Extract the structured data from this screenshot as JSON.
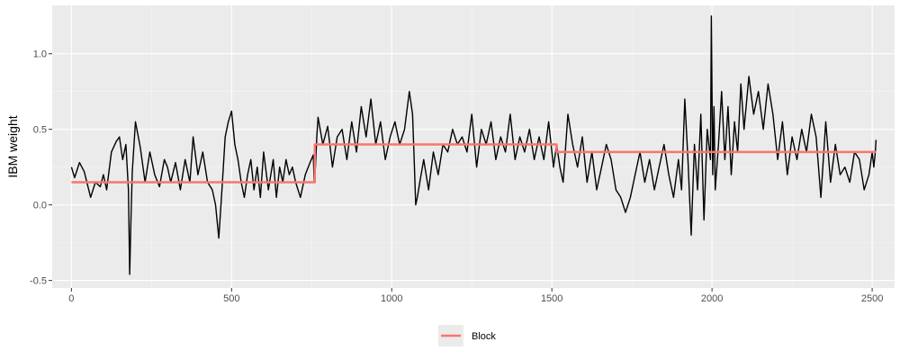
{
  "chart_data": {
    "type": "line",
    "title": "",
    "xlabel": "",
    "ylabel": "IBM weight",
    "xlim": [
      -60,
      2570
    ],
    "ylim": [
      -0.55,
      1.32
    ],
    "x_ticks": [
      0,
      500,
      1000,
      1500,
      2000,
      2500
    ],
    "y_ticks": [
      -0.5,
      0.0,
      0.5,
      1.0
    ],
    "x_tick_labels": [
      "0",
      "500",
      "1000",
      "1500",
      "2000",
      "2500"
    ],
    "y_tick_labels": [
      "-0.5",
      "0.0",
      "0.5",
      "1.0"
    ],
    "grid": true,
    "legend_position": "bottom",
    "series": [
      {
        "name": "",
        "color": "#000000",
        "x": [
          0,
          10,
          25,
          40,
          60,
          75,
          90,
          100,
          110,
          125,
          140,
          150,
          160,
          170,
          178,
          182,
          186,
          190,
          200,
          215,
          230,
          245,
          260,
          275,
          290,
          300,
          310,
          325,
          340,
          355,
          370,
          380,
          395,
          410,
          425,
          440,
          450,
          460,
          470,
          480,
          490,
          500,
          510,
          520,
          530,
          540,
          550,
          560,
          570,
          580,
          590,
          600,
          615,
          630,
          640,
          650,
          660,
          670,
          680,
          690,
          700,
          715,
          730,
          745,
          755,
          758,
          762,
          766,
          770,
          785,
          800,
          815,
          830,
          845,
          860,
          875,
          890,
          905,
          920,
          935,
          950,
          965,
          980,
          995,
          1010,
          1025,
          1040,
          1055,
          1065,
          1070,
          1075,
          1080,
          1090,
          1100,
          1115,
          1130,
          1145,
          1160,
          1175,
          1190,
          1205,
          1220,
          1235,
          1250,
          1265,
          1280,
          1295,
          1310,
          1325,
          1340,
          1355,
          1370,
          1385,
          1400,
          1415,
          1430,
          1445,
          1460,
          1475,
          1490,
          1505,
          1515,
          1525,
          1535,
          1550,
          1565,
          1580,
          1595,
          1610,
          1625,
          1640,
          1655,
          1670,
          1685,
          1700,
          1715,
          1730,
          1745,
          1760,
          1775,
          1790,
          1805,
          1820,
          1835,
          1850,
          1865,
          1880,
          1895,
          1905,
          1915,
          1925,
          1935,
          1945,
          1955,
          1965,
          1975,
          1985,
          1995,
          1998,
          2002,
          2006,
          2010,
          2020,
          2030,
          2040,
          2050,
          2060,
          2070,
          2080,
          2090,
          2100,
          2115,
          2130,
          2145,
          2160,
          2175,
          2190,
          2205,
          2220,
          2235,
          2250,
          2265,
          2280,
          2295,
          2310,
          2325,
          2340,
          2355,
          2370,
          2385,
          2400,
          2415,
          2430,
          2445,
          2460,
          2475,
          2490,
          2500,
          2505,
          2510,
          2512
        ],
        "y": [
          0.25,
          0.18,
          0.28,
          0.22,
          0.05,
          0.15,
          0.12,
          0.2,
          0.1,
          0.35,
          0.42,
          0.45,
          0.3,
          0.4,
          0.1,
          -0.46,
          -0.1,
          0.22,
          0.55,
          0.38,
          0.15,
          0.35,
          0.2,
          0.12,
          0.3,
          0.25,
          0.15,
          0.28,
          0.1,
          0.3,
          0.15,
          0.45,
          0.2,
          0.35,
          0.15,
          0.1,
          0.0,
          -0.22,
          0.1,
          0.45,
          0.55,
          0.62,
          0.4,
          0.3,
          0.15,
          0.05,
          0.2,
          0.3,
          0.1,
          0.25,
          0.05,
          0.35,
          0.1,
          0.3,
          0.05,
          0.25,
          0.15,
          0.3,
          0.2,
          0.25,
          0.15,
          0.05,
          0.2,
          0.28,
          0.33,
          0.15,
          0.25,
          0.45,
          0.58,
          0.4,
          0.52,
          0.25,
          0.45,
          0.5,
          0.3,
          0.55,
          0.35,
          0.65,
          0.45,
          0.7,
          0.4,
          0.55,
          0.3,
          0.45,
          0.55,
          0.4,
          0.5,
          0.75,
          0.6,
          0.3,
          0.0,
          0.05,
          0.18,
          0.3,
          0.1,
          0.35,
          0.2,
          0.4,
          0.35,
          0.5,
          0.4,
          0.45,
          0.35,
          0.6,
          0.25,
          0.5,
          0.4,
          0.55,
          0.3,
          0.45,
          0.35,
          0.6,
          0.3,
          0.45,
          0.35,
          0.5,
          0.3,
          0.45,
          0.3,
          0.55,
          0.25,
          0.4,
          0.25,
          0.15,
          0.6,
          0.4,
          0.25,
          0.45,
          0.15,
          0.35,
          0.1,
          0.25,
          0.4,
          0.3,
          0.1,
          0.05,
          -0.05,
          0.05,
          0.2,
          0.35,
          0.15,
          0.3,
          0.1,
          0.25,
          0.4,
          0.2,
          0.05,
          0.3,
          0.1,
          0.7,
          0.3,
          -0.2,
          0.4,
          0.1,
          0.6,
          -0.1,
          0.5,
          0.3,
          1.25,
          0.2,
          0.65,
          0.1,
          0.4,
          0.75,
          0.3,
          0.65,
          0.2,
          0.55,
          0.35,
          0.8,
          0.5,
          0.85,
          0.6,
          0.75,
          0.5,
          0.8,
          0.6,
          0.3,
          0.55,
          0.2,
          0.45,
          0.3,
          0.5,
          0.35,
          0.6,
          0.45,
          0.05,
          0.55,
          0.15,
          0.4,
          0.2,
          0.25,
          0.15,
          0.35,
          0.3,
          0.1,
          0.2,
          0.35,
          0.25,
          0.35,
          0.43
        ]
      },
      {
        "name": "Block",
        "color": "#f8766d",
        "x": [
          0,
          760,
          760,
          1515,
          1515,
          2512
        ],
        "y": [
          0.15,
          0.15,
          0.4,
          0.4,
          0.35,
          0.35
        ]
      }
    ]
  }
}
